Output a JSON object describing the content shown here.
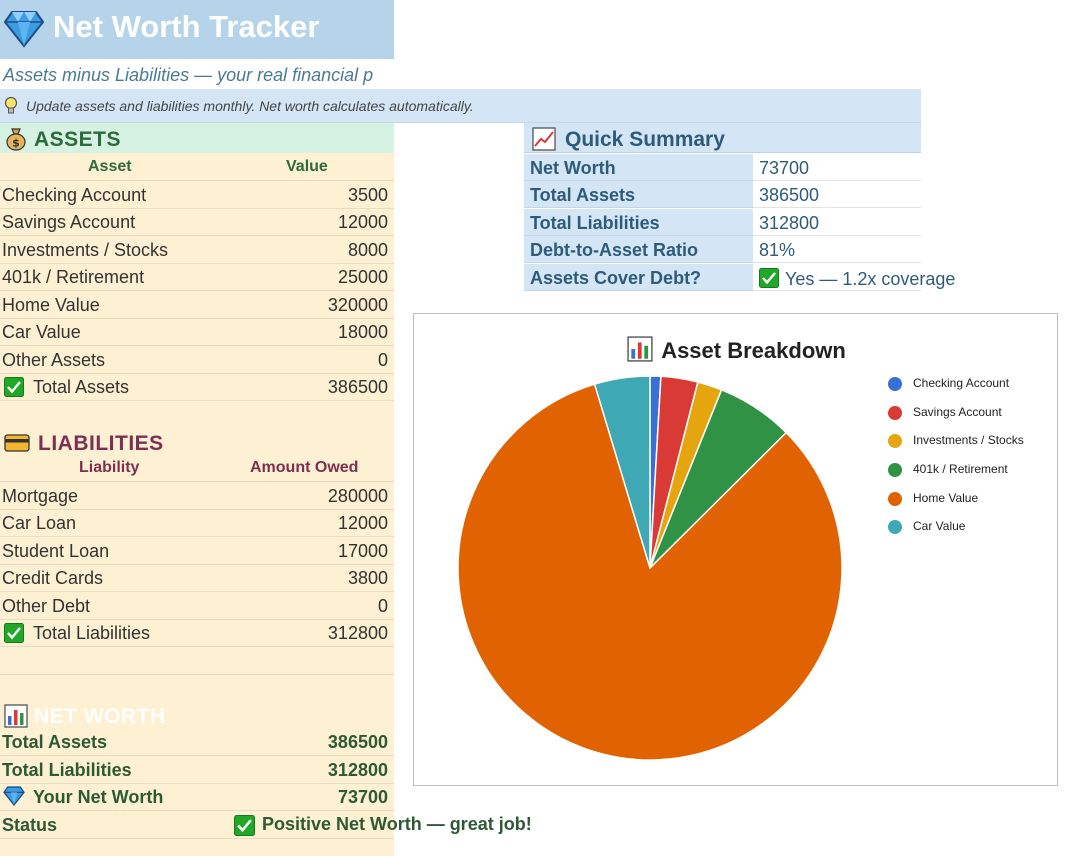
{
  "header": {
    "title": "Net Worth Tracker",
    "subtitle": "Assets minus Liabilities — your real financial p",
    "tip": "Update assets and liabilities monthly. Net worth calculates automatically."
  },
  "assets": {
    "heading": "ASSETS",
    "col_asset": "Asset",
    "col_value": "Value",
    "rows": [
      {
        "label": "Checking Account",
        "value": "3500"
      },
      {
        "label": "Savings Account",
        "value": "12000"
      },
      {
        "label": "Investments / Stocks",
        "value": "8000"
      },
      {
        "label": "401k / Retirement",
        "value": "25000"
      },
      {
        "label": "Home Value",
        "value": "320000"
      },
      {
        "label": "Car Value",
        "value": "18000"
      },
      {
        "label": "Other Assets",
        "value": "0"
      }
    ],
    "total_label": "Total Assets",
    "total_value": "386500"
  },
  "liabilities": {
    "heading": "LIABILITIES",
    "col_liability": "Liability",
    "col_amount": "Amount Owed",
    "rows": [
      {
        "label": "Mortgage",
        "value": "280000"
      },
      {
        "label": "Car Loan",
        "value": "12000"
      },
      {
        "label": "Student Loan",
        "value": "17000"
      },
      {
        "label": "Credit Cards",
        "value": "3800"
      },
      {
        "label": "Other Debt",
        "value": "0"
      }
    ],
    "total_label": "Total Liabilities",
    "total_value": "312800"
  },
  "net_worth": {
    "heading": "NET WORTH",
    "total_assets_label": "Total Assets",
    "total_assets_value": "386500",
    "total_liabilities_label": "Total Liabilities",
    "total_liabilities_value": "312800",
    "your_net_worth_label": "Your Net Worth",
    "your_net_worth_value": "73700",
    "status_label": "Status",
    "status_value": "Positive Net Worth — great job!"
  },
  "summary": {
    "heading": "Quick Summary",
    "rows": [
      {
        "label": "Net Worth",
        "value": "73700"
      },
      {
        "label": "Total Assets",
        "value": "386500"
      },
      {
        "label": "Total Liabilities",
        "value": "312800"
      },
      {
        "label": "Debt-to-Asset Ratio",
        "value": "81%"
      },
      {
        "label": "Assets Cover Debt?",
        "value": "Yes — 1.2x coverage"
      }
    ]
  },
  "colors": {
    "title_bar": "#b5d4e9",
    "assets_band": "#fdf0d3",
    "summary_band": "#d4e6f5",
    "check_green": "#22a829"
  },
  "icons": {
    "title": "gem-icon",
    "tip": "lightbulb-icon",
    "assets": "money-bag-icon",
    "liabilities": "credit-card-icon",
    "net_worth": "bar-chart-icon",
    "summary": "chart-increasing-icon",
    "check": "check-box-icon"
  },
  "chart_data": {
    "type": "pie",
    "title": "Asset Breakdown",
    "legend_position": "right",
    "categories": [
      "Checking Account",
      "Savings Account",
      "Investments / Stocks",
      "401k / Retirement",
      "Home Value",
      "Car Value"
    ],
    "values": [
      3500,
      12000,
      8000,
      25000,
      320000,
      18000
    ],
    "colors": [
      "#3a6fd8",
      "#d93a35",
      "#e5a50f",
      "#2f9244",
      "#e06200",
      "#3ea8b4"
    ]
  }
}
